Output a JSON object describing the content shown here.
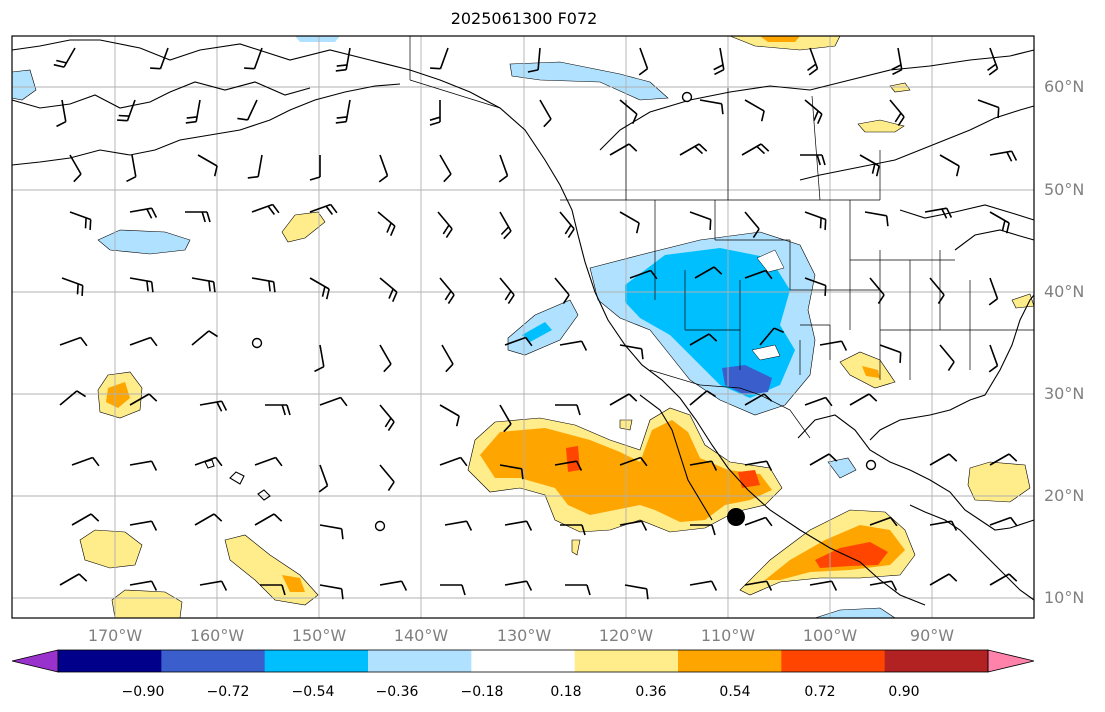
{
  "title": "2025061300 F072",
  "lat_labels": [
    "60°N",
    "50°N",
    "40°N",
    "30°N",
    "20°N",
    "10°N"
  ],
  "lon_labels": [
    "170°W",
    "160°W",
    "150°W",
    "140°W",
    "130°W",
    "120°W",
    "110°W",
    "100°W",
    "90°W"
  ],
  "colorbar": {
    "labels": [
      "−0.90",
      "−0.72",
      "−0.54",
      "−0.36",
      "−0.18",
      "0.18",
      "0.36",
      "0.54",
      "0.72",
      "0.90"
    ],
    "colors": [
      "#9932cc",
      "#00008b",
      "#3a5fcd",
      "#00bfff",
      "#b0e2ff",
      "#ffffff",
      "#ffec8b",
      "#ffa500",
      "#ff4500",
      "#b22222",
      "#ff82ab"
    ]
  }
}
